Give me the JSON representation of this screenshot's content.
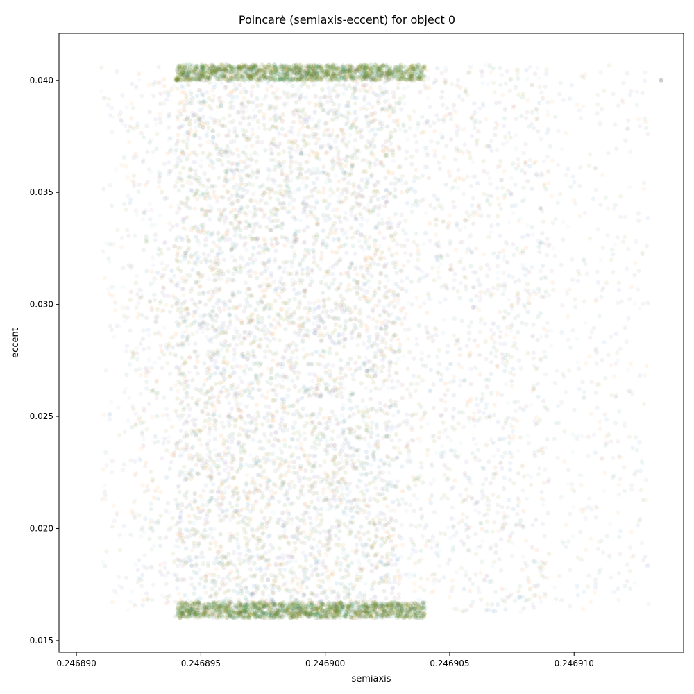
{
  "chart_data": {
    "type": "scatter",
    "title": "Poincarè (semiaxis-eccent) for object 0",
    "xlabel": "semiaxis",
    "ylabel": "eccent",
    "xlim": [
      0.2468893,
      0.2469144
    ],
    "ylim": [
      0.01447,
      0.0421
    ],
    "xticks": [
      0.24689,
      0.246895,
      0.2469,
      0.246905,
      0.24691
    ],
    "xtick_labels": [
      "0.246890",
      "0.246895",
      "0.246900",
      "0.246905",
      "0.246910"
    ],
    "yticks": [
      0.015,
      0.02,
      0.025,
      0.03,
      0.035,
      0.04
    ],
    "ytick_labels": [
      "0.015",
      "0.020",
      "0.025",
      "0.030",
      "0.035",
      "0.040"
    ],
    "grid": false,
    "legend": "none",
    "point_colors": [
      "#7f7f7f",
      "#8c564b",
      "#9467bd",
      "#1f77b4",
      "#ff7f0e",
      "#808000",
      "#2e8b57",
      "#9ec3d9"
    ],
    "series": [
      {
        "x_range": [
          0.246891,
          0.246913
        ],
        "y_range": [
          0.0163,
          0.0407
        ],
        "density": "sparse-outer"
      },
      {
        "x_range": [
          0.246892,
          0.246909
        ],
        "y_range": [
          0.0162,
          0.0406
        ],
        "density": "medium"
      },
      {
        "x_range": [
          0.246894,
          0.246903
        ],
        "y_range": [
          0.016,
          0.0407
        ],
        "density": "dense-core"
      },
      {
        "x_range": [
          0.246894,
          0.246904
        ],
        "y_range": [
          0.04,
          0.0407
        ],
        "density": "dense-top-band"
      },
      {
        "x_range": [
          0.246894,
          0.246904
        ],
        "y_range": [
          0.016,
          0.0167
        ],
        "density": "dense-bottom-band"
      }
    ],
    "outlier": {
      "x": 0.2469135,
      "y": 0.04
    }
  }
}
